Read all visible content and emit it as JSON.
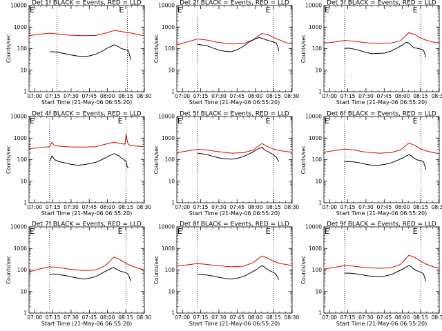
{
  "colors": {
    "events": "#000000",
    "lld": "#dd0000",
    "axes": "#000000",
    "background": "#ffffff"
  },
  "chart_data": {
    "type": "line",
    "layout": "3x3 grid",
    "shared": {
      "ylabel": "Counts/sec",
      "xlabel": "Start Time (21-May-06 06:55:20)",
      "ylim": [
        1,
        10000
      ],
      "yscale": "log",
      "y_ticks": [
        "1",
        "10",
        "100",
        "1000",
        "10000"
      ],
      "xlim_minutes": [
        0,
        95
      ],
      "x_ticks": [
        "07:00",
        "07:15",
        "07:30",
        "07:45",
        "08:00",
        "08:15",
        "08:30"
      ],
      "x_tick_minutes": [
        4.67,
        19.67,
        34.67,
        49.67,
        64.67,
        79.67,
        94.67
      ],
      "marker_labels": [
        "E",
        "E"
      ]
    },
    "panels": [
      {
        "title": "Det 1f  BLACK = Events, RED = LLD",
        "series": [
          {
            "name": "LLD",
            "color": "red",
            "x": [
              0,
              8,
              17,
              25,
              33,
              45,
              55,
              63,
              70,
              75,
              80,
              85,
              90,
              95
            ],
            "y": [
              400,
              460,
              520,
              470,
              420,
              400,
              410,
              520,
              690,
              640,
              560,
              520,
              440,
              400
            ]
          },
          {
            "name": "Events",
            "color": "black",
            "x": [
              17,
              20,
              25,
              30,
              35,
              40,
              45,
              50,
              55,
              60,
              65,
              68,
              70,
              72,
              74,
              76,
              78,
              80,
              82,
              83,
              84
            ],
            "y": [
              70,
              72,
              65,
              58,
              50,
              45,
              43,
              46,
              55,
              75,
              110,
              130,
              150,
              140,
              120,
              100,
              95,
              88,
              80,
              45,
              30
            ]
          }
        ],
        "dotted_lines_minutes": [
          23,
          81
        ]
      },
      {
        "title": "Det 2f  BLACK = Events, RED = LLD",
        "series": [
          {
            "name": "LLD",
            "color": "red",
            "x": [
              0,
              8,
              17,
              25,
              33,
              45,
              55,
              63,
              70,
              75,
              80,
              85,
              90,
              95
            ],
            "y": [
              150,
              200,
              280,
              250,
              200,
              165,
              170,
              260,
              500,
              450,
              320,
              250,
              190,
              160
            ]
          },
          {
            "name": "Events",
            "color": "black",
            "x": [
              17,
              20,
              25,
              30,
              35,
              40,
              45,
              50,
              55,
              60,
              65,
              68,
              70,
              72,
              74,
              76,
              78,
              80,
              82,
              83,
              84
            ],
            "y": [
              160,
              150,
              135,
              105,
              85,
              75,
              72,
              90,
              130,
              210,
              290,
              330,
              300,
              280,
              250,
              230,
              215,
              200,
              180,
              130,
              75
            ]
          }
        ],
        "dotted_lines_minutes": [
          17,
          80
        ]
      },
      {
        "title": "Det 3f  BLACK = Events, RED = LLD",
        "series": [
          {
            "name": "LLD",
            "color": "red",
            "x": [
              0,
              8,
              17,
              25,
              33,
              45,
              55,
              63,
              70,
              75,
              80,
              85,
              90,
              95
            ],
            "y": [
              180,
              200,
              240,
              220,
              190,
              170,
              180,
              230,
              550,
              450,
              300,
              240,
              200,
              180
            ]
          },
          {
            "name": "Events",
            "color": "black",
            "x": [
              17,
              20,
              25,
              30,
              35,
              40,
              45,
              50,
              55,
              60,
              65,
              68,
              70,
              72,
              74,
              76,
              78,
              80,
              82,
              83,
              84
            ],
            "y": [
              100,
              105,
              95,
              80,
              65,
              58,
              60,
              62,
              75,
              105,
              150,
              200,
              180,
              140,
              110,
              105,
              100,
              95,
              85,
              60,
              40
            ]
          }
        ],
        "dotted_lines_minutes": [
          17,
          80
        ]
      },
      {
        "title": "Det 4f  BLACK = Events, RED = LLD",
        "series": [
          {
            "name": "LLD",
            "color": "red",
            "x": [
              0,
              8,
              17,
              19,
              21,
              25,
              33,
              45,
              55,
              63,
              70,
              75,
              79,
              80,
              81,
              82,
              85,
              90,
              95
            ],
            "y": [
              320,
              360,
              400,
              650,
              450,
              420,
              390,
              380,
              400,
              520,
              650,
              560,
              520,
              1500,
              700,
              500,
              440,
              420,
              400
            ]
          },
          {
            "name": "Events",
            "color": "black",
            "x": [
              17,
              19,
              21,
              25,
              30,
              35,
              40,
              45,
              50,
              55,
              60,
              65,
              68,
              70,
              72,
              74,
              76,
              78,
              80,
              81,
              82
            ],
            "y": [
              85,
              150,
              100,
              80,
              70,
              60,
              55,
              58,
              65,
              75,
              100,
              140,
              170,
              190,
              170,
              150,
              120,
              100,
              80,
              45,
              40
            ]
          }
        ],
        "dotted_lines_minutes": [
          17,
          80
        ]
      },
      {
        "title": "Det 5f  BLACK = Events, RED = LLD",
        "series": [
          {
            "name": "LLD",
            "color": "red",
            "x": [
              0,
              8,
              17,
              25,
              33,
              45,
              55,
              63,
              70,
              75,
              80,
              85,
              90,
              95
            ],
            "y": [
              210,
              250,
              300,
              280,
              240,
              200,
              210,
              280,
              560,
              400,
              300,
              260,
              240,
              220
            ]
          },
          {
            "name": "Events",
            "color": "black",
            "x": [
              17,
              20,
              25,
              30,
              35,
              40,
              45,
              50,
              55,
              60,
              65,
              68,
              70,
              72,
              74,
              76,
              78,
              80,
              82,
              83,
              84
            ],
            "y": [
              200,
              190,
              170,
              140,
              120,
              110,
              105,
              115,
              140,
              190,
              270,
              340,
              380,
              300,
              250,
              220,
              190,
              160,
              130,
              100,
              80
            ]
          }
        ],
        "dotted_lines_minutes": [
          17,
          80
        ]
      },
      {
        "title": "Det 6f  BLACK = Events, RED = LLD",
        "series": [
          {
            "name": "LLD",
            "color": "red",
            "x": [
              0,
              8,
              17,
              25,
              33,
              45,
              55,
              63,
              70,
              75,
              80,
              85,
              90,
              95
            ],
            "y": [
              220,
              260,
              310,
              280,
              230,
              200,
              210,
              280,
              600,
              450,
              310,
              250,
              210,
              190
            ]
          },
          {
            "name": "Events",
            "color": "black",
            "x": [
              17,
              20,
              25,
              30,
              35,
              40,
              45,
              50,
              55,
              60,
              65,
              68,
              70,
              72,
              74,
              76,
              78,
              80,
              82,
              83,
              84
            ],
            "y": [
              80,
              82,
              78,
              70,
              60,
              55,
              55,
              60,
              70,
              90,
              120,
              150,
              170,
              150,
              120,
              100,
              95,
              90,
              80,
              55,
              35
            ]
          }
        ],
        "dotted_lines_minutes": [
          17,
          80
        ]
      },
      {
        "title": "Det 7f  BLACK = Events, RED = LLD",
        "series": [
          {
            "name": "LLD",
            "color": "red",
            "x": [
              0,
              8,
              17,
              25,
              33,
              45,
              55,
              63,
              70,
              75,
              80,
              85,
              90,
              95
            ],
            "y": [
              80,
              110,
              140,
              130,
              110,
              95,
              100,
              160,
              400,
              300,
              200,
              150,
              120,
              100
            ]
          },
          {
            "name": "Events",
            "color": "black",
            "x": [
              17,
              20,
              25,
              30,
              35,
              40,
              45,
              50,
              55,
              60,
              65,
              68,
              70,
              72,
              74,
              76,
              78,
              80,
              82,
              83,
              84
            ],
            "y": [
              60,
              65,
              60,
              55,
              48,
              42,
              38,
              42,
              50,
              70,
              100,
              120,
              130,
              110,
              95,
              85,
              80,
              75,
              60,
              40,
              30
            ]
          }
        ],
        "dotted_lines_minutes": [
          17,
          80
        ]
      },
      {
        "title": "Det 8f  BLACK = Events, RED = LLD",
        "series": [
          {
            "name": "LLD",
            "color": "red",
            "x": [
              0,
              8,
              17,
              25,
              33,
              45,
              55,
              63,
              70,
              75,
              80,
              85,
              90,
              95
            ],
            "y": [
              150,
              170,
              200,
              180,
              160,
              140,
              150,
              220,
              450,
              350,
              250,
              200,
              180,
              160
            ]
          },
          {
            "name": "Events",
            "color": "black",
            "x": [
              17,
              20,
              25,
              30,
              35,
              40,
              45,
              50,
              55,
              60,
              65,
              68,
              70,
              72,
              74,
              76,
              78,
              80,
              82,
              83,
              84
            ],
            "y": [
              60,
              62,
              58,
              52,
              45,
              40,
              38,
              42,
              50,
              70,
              100,
              130,
              160,
              140,
              110,
              95,
              85,
              75,
              60,
              45,
              35
            ]
          }
        ],
        "dotted_lines_minutes": [
          17,
          80
        ]
      },
      {
        "title": "Det 9f  BLACK = Events, RED = LLD",
        "series": [
          {
            "name": "LLD",
            "color": "red",
            "x": [
              0,
              8,
              17,
              25,
              33,
              45,
              55,
              63,
              70,
              75,
              80,
              85,
              90,
              95
            ],
            "y": [
              110,
              130,
              160,
              150,
              130,
              120,
              125,
              180,
              480,
              380,
              250,
              180,
              140,
              120
            ]
          },
          {
            "name": "Events",
            "color": "black",
            "x": [
              17,
              20,
              25,
              30,
              35,
              40,
              45,
              50,
              55,
              60,
              65,
              68,
              70,
              72,
              74,
              76,
              78,
              80,
              82,
              83,
              84
            ],
            "y": [
              70,
              72,
              68,
              62,
              55,
              50,
              48,
              52,
              60,
              80,
              110,
              140,
              160,
              140,
              110,
              95,
              85,
              78,
              65,
              45,
              30
            ]
          }
        ],
        "dotted_lines_minutes": [
          17,
          80
        ]
      }
    ]
  }
}
